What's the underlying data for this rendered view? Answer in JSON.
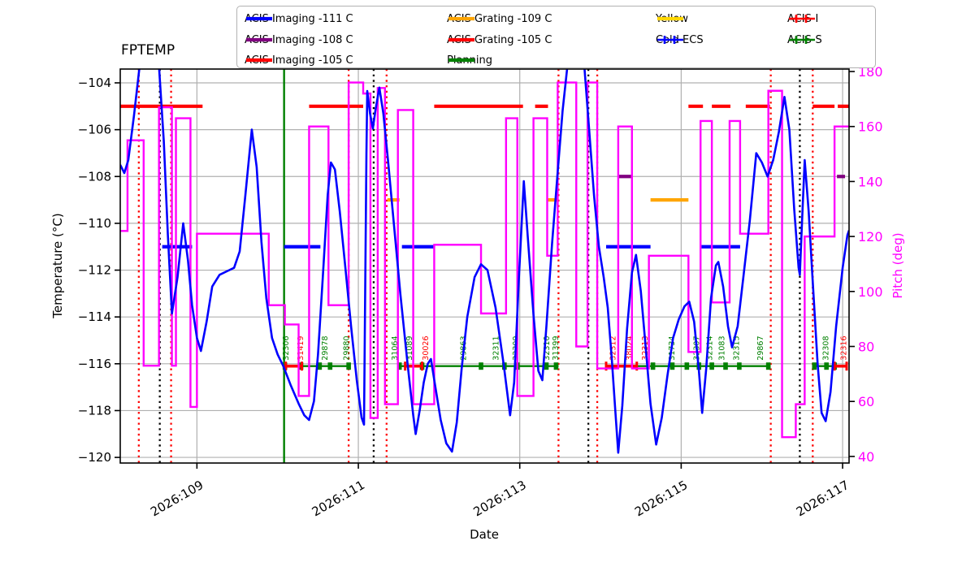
{
  "title": "FPTEMP",
  "axes": {
    "y_left": "Temperature (°C)",
    "y_right": "Pitch (deg)",
    "x": "Date"
  },
  "legend": {
    "items": [
      {
        "label": "ACIS Imaging -111 C",
        "color": "#0000ff",
        "style": "line",
        "col": 0,
        "row": 0
      },
      {
        "label": "ACIS Imaging -108 C",
        "color": "#800080",
        "style": "line",
        "col": 0,
        "row": 1
      },
      {
        "label": "ACIS Imaging -105 C",
        "color": "#ff0000",
        "style": "line",
        "col": 0,
        "row": 2
      },
      {
        "label": "ACIS Grating -109 C",
        "color": "#ffa500",
        "style": "line",
        "col": 1,
        "row": 0
      },
      {
        "label": "ACIS Grating -105 C",
        "color": "#ff0000",
        "style": "line",
        "col": 1,
        "row": 1
      },
      {
        "label": "Planning",
        "color": "#008000",
        "style": "line",
        "col": 1,
        "row": 2
      },
      {
        "label": "Yellow",
        "color": "#ffd700",
        "style": "line",
        "col": 2,
        "row": 0
      },
      {
        "label": "Cold ECS",
        "color": "#0000ff",
        "style": "plusline",
        "col": 2,
        "row": 1
      },
      {
        "label": "ACIS-I",
        "color": "#ff0000",
        "style": "plusline",
        "col": 3,
        "row": 0
      },
      {
        "label": "ACIS-S",
        "color": "#008000",
        "style": "plusline",
        "col": 3,
        "row": 1
      }
    ]
  },
  "chart_data": {
    "type": "line",
    "title": "FPTEMP",
    "xlabel": "Date",
    "ylabel_left": "Temperature (°C)",
    "ylabel_right": "Pitch (deg)",
    "grid": true,
    "x_range": [
      108.05,
      117.08
    ],
    "x_ticks": [
      {
        "day": 109,
        "label": "2026:109"
      },
      {
        "day": 111,
        "label": "2026:111"
      },
      {
        "day": 113,
        "label": "2026:113"
      },
      {
        "day": 115,
        "label": "2026:115"
      },
      {
        "day": 117,
        "label": "2026:117"
      }
    ],
    "y_left_range": [
      -120.24,
      -103.41
    ],
    "y_left_ticks": [
      -104,
      -106,
      -108,
      -110,
      -112,
      -114,
      -116,
      -118,
      -120
    ],
    "y_right_range": [
      37.6,
      180.9
    ],
    "y_right_ticks": [
      180,
      160,
      140,
      120,
      100,
      80,
      60,
      40
    ],
    "fptemp_series": {
      "name": "FPTEMP",
      "color": "#0000ff",
      "units": "C",
      "points": [
        [
          108.05,
          -107.5
        ],
        [
          108.1,
          -107.85
        ],
        [
          108.15,
          -107.3
        ],
        [
          108.22,
          -105.4
        ],
        [
          108.29,
          -103.3
        ],
        [
          108.53,
          -103.3
        ],
        [
          108.59,
          -106.5
        ],
        [
          108.64,
          -110.5
        ],
        [
          108.69,
          -113.85
        ],
        [
          108.76,
          -112.3
        ],
        [
          108.83,
          -110.0
        ],
        [
          108.89,
          -111.6
        ],
        [
          108.94,
          -113.5
        ],
        [
          109.0,
          -114.9
        ],
        [
          109.05,
          -115.45
        ],
        [
          109.12,
          -114.2
        ],
        [
          109.19,
          -112.7
        ],
        [
          109.28,
          -112.2
        ],
        [
          109.37,
          -112.05
        ],
        [
          109.46,
          -111.9
        ],
        [
          109.53,
          -111.2
        ],
        [
          109.6,
          -108.8
        ],
        [
          109.68,
          -106.0
        ],
        [
          109.74,
          -107.6
        ],
        [
          109.8,
          -110.8
        ],
        [
          109.86,
          -113.2
        ],
        [
          109.93,
          -114.9
        ],
        [
          110.0,
          -115.6
        ],
        [
          110.07,
          -116.1
        ],
        [
          110.16,
          -116.9
        ],
        [
          110.26,
          -117.7
        ],
        [
          110.33,
          -118.2
        ],
        [
          110.39,
          -118.4
        ],
        [
          110.45,
          -117.6
        ],
        [
          110.5,
          -115.6
        ],
        [
          110.56,
          -112.3
        ],
        [
          110.62,
          -108.8
        ],
        [
          110.66,
          -107.4
        ],
        [
          110.71,
          -107.7
        ],
        [
          110.77,
          -109.5
        ],
        [
          110.84,
          -111.9
        ],
        [
          110.91,
          -114.4
        ],
        [
          110.98,
          -116.7
        ],
        [
          111.04,
          -118.3
        ],
        [
          111.07,
          -118.6
        ],
        [
          111.1,
          -107.0
        ],
        [
          111.11,
          -104.35
        ],
        [
          111.145,
          -105.3
        ],
        [
          111.18,
          -105.95
        ],
        [
          111.215,
          -105.1
        ],
        [
          111.26,
          -104.2
        ],
        [
          111.31,
          -105.3
        ],
        [
          111.37,
          -107.4
        ],
        [
          111.44,
          -110.0
        ],
        [
          111.52,
          -113.0
        ],
        [
          111.61,
          -116.0
        ],
        [
          111.68,
          -118.2
        ],
        [
          111.71,
          -119.0
        ],
        [
          111.76,
          -118.0
        ],
        [
          111.81,
          -116.8
        ],
        [
          111.86,
          -116.0
        ],
        [
          111.9,
          -115.8
        ],
        [
          111.95,
          -116.9
        ],
        [
          112.02,
          -118.4
        ],
        [
          112.09,
          -119.4
        ],
        [
          112.16,
          -119.75
        ],
        [
          112.22,
          -118.5
        ],
        [
          112.28,
          -116.2
        ],
        [
          112.35,
          -114.0
        ],
        [
          112.44,
          -112.3
        ],
        [
          112.52,
          -111.75
        ],
        [
          112.6,
          -112.0
        ],
        [
          112.7,
          -113.6
        ],
        [
          112.8,
          -116.0
        ],
        [
          112.88,
          -118.2
        ],
        [
          112.93,
          -116.8
        ],
        [
          112.99,
          -112.3
        ],
        [
          113.05,
          -108.2
        ],
        [
          113.1,
          -110.6
        ],
        [
          113.17,
          -113.9
        ],
        [
          113.23,
          -116.3
        ],
        [
          113.28,
          -116.7
        ],
        [
          113.33,
          -114.4
        ],
        [
          113.4,
          -110.9
        ],
        [
          113.47,
          -107.8
        ],
        [
          113.53,
          -105.2
        ],
        [
          113.59,
          -103.3
        ],
        [
          113.8,
          -103.3
        ],
        [
          113.86,
          -106.0
        ],
        [
          113.92,
          -108.8
        ],
        [
          113.98,
          -111.0
        ],
        [
          114.04,
          -112.3
        ],
        [
          114.09,
          -113.6
        ],
        [
          114.14,
          -115.8
        ],
        [
          114.18,
          -117.8
        ],
        [
          114.22,
          -119.8
        ],
        [
          114.27,
          -117.8
        ],
        [
          114.33,
          -114.5
        ],
        [
          114.39,
          -112.1
        ],
        [
          114.44,
          -111.35
        ],
        [
          114.5,
          -112.9
        ],
        [
          114.56,
          -115.3
        ],
        [
          114.62,
          -117.7
        ],
        [
          114.69,
          -119.45
        ],
        [
          114.76,
          -118.3
        ],
        [
          114.83,
          -116.5
        ],
        [
          114.9,
          -114.9
        ],
        [
          114.97,
          -114.1
        ],
        [
          115.04,
          -113.55
        ],
        [
          115.1,
          -113.35
        ],
        [
          115.16,
          -114.2
        ],
        [
          115.22,
          -116.3
        ],
        [
          115.26,
          -118.1
        ],
        [
          115.31,
          -116.2
        ],
        [
          115.37,
          -113.2
        ],
        [
          115.43,
          -111.8
        ],
        [
          115.46,
          -111.65
        ],
        [
          115.52,
          -112.7
        ],
        [
          115.58,
          -114.4
        ],
        [
          115.63,
          -115.3
        ],
        [
          115.7,
          -114.4
        ],
        [
          115.77,
          -112.3
        ],
        [
          115.85,
          -109.9
        ],
        [
          115.93,
          -107.0
        ],
        [
          116.0,
          -107.4
        ],
        [
          116.07,
          -108.0
        ],
        [
          116.14,
          -107.3
        ],
        [
          116.21,
          -106.1
        ],
        [
          116.28,
          -104.6
        ],
        [
          116.34,
          -106.0
        ],
        [
          116.4,
          -109.4
        ],
        [
          116.455,
          -111.9
        ],
        [
          116.47,
          -112.2
        ],
        [
          116.5,
          -109.7
        ],
        [
          116.53,
          -107.3
        ],
        [
          116.58,
          -109.5
        ],
        [
          116.63,
          -112.5
        ],
        [
          116.69,
          -116.0
        ],
        [
          116.74,
          -118.1
        ],
        [
          116.79,
          -118.45
        ],
        [
          116.85,
          -117.2
        ],
        [
          116.92,
          -114.4
        ],
        [
          117.0,
          -111.9
        ],
        [
          117.06,
          -110.5
        ],
        [
          117.08,
          -110.3
        ]
      ]
    },
    "pitch_series": {
      "name": "Pitch",
      "color": "#ff00ff",
      "units": "deg",
      "style": "steps",
      "steps": [
        [
          108.05,
          122
        ],
        [
          108.14,
          155
        ],
        [
          108.34,
          73
        ],
        [
          108.53,
          167
        ],
        [
          108.69,
          73
        ],
        [
          108.74,
          163
        ],
        [
          108.92,
          58
        ],
        [
          109.0,
          121
        ],
        [
          109.89,
          95
        ],
        [
          110.09,
          88
        ],
        [
          110.26,
          62
        ],
        [
          110.39,
          160
        ],
        [
          110.63,
          95
        ],
        [
          110.88,
          176
        ],
        [
          111.06,
          172
        ],
        [
          111.15,
          54
        ],
        [
          111.24,
          174
        ],
        [
          111.33,
          59
        ],
        [
          111.49,
          166
        ],
        [
          111.68,
          59
        ],
        [
          111.94,
          117
        ],
        [
          112.52,
          92
        ],
        [
          112.83,
          163
        ],
        [
          112.97,
          62
        ],
        [
          113.17,
          163
        ],
        [
          113.34,
          113
        ],
        [
          113.47,
          176
        ],
        [
          113.7,
          80
        ],
        [
          113.84,
          176
        ],
        [
          113.96,
          72
        ],
        [
          114.22,
          160
        ],
        [
          114.39,
          72
        ],
        [
          114.6,
          113
        ],
        [
          115.09,
          78
        ],
        [
          115.24,
          162
        ],
        [
          115.38,
          96
        ],
        [
          115.6,
          162
        ],
        [
          115.73,
          121
        ],
        [
          116.08,
          173
        ],
        [
          116.25,
          47
        ],
        [
          116.42,
          59
        ],
        [
          116.53,
          120
        ],
        [
          116.9,
          160
        ]
      ],
      "end_day": 117.08
    },
    "limit_segments": [
      {
        "name": "ACIS Imaging -111 C",
        "color": "#0000ff",
        "temp": -111,
        "segments": [
          [
            108.57,
            108.94
          ],
          [
            110.08,
            110.53
          ],
          [
            111.54,
            111.94
          ],
          [
            114.07,
            114.62
          ],
          [
            115.25,
            115.73
          ]
        ]
      },
      {
        "name": "ACIS Imaging -108 C",
        "color": "#800080",
        "temp": -108,
        "segments": [
          [
            114.22,
            114.38
          ],
          [
            116.93,
            117.03
          ]
        ]
      },
      {
        "name": "ACIS Imaging -105 C",
        "color": "#ff0000",
        "temp": -105,
        "segments": [
          [
            108.05,
            109.07
          ],
          [
            110.39,
            111.06
          ],
          [
            111.94,
            113.04
          ],
          [
            113.19,
            113.35
          ],
          [
            115.09,
            115.27
          ],
          [
            115.38,
            115.61
          ],
          [
            115.8,
            116.1
          ],
          [
            116.63,
            116.9
          ],
          [
            116.94,
            117.08
          ]
        ]
      },
      {
        "name": "ACIS Grating -109 C",
        "color": "#ffa500",
        "temp": -109,
        "segments": [
          [
            111.36,
            111.51
          ],
          [
            113.35,
            113.47
          ],
          [
            114.62,
            115.09
          ]
        ]
      }
    ],
    "planning_vline": {
      "day": 110.08,
      "color": "#008000"
    },
    "vlines_dotted": [
      {
        "day": 108.28,
        "color": "#ff0000"
      },
      {
        "day": 108.54,
        "color": "#000000"
      },
      {
        "day": 108.68,
        "color": "#ff0000"
      },
      {
        "day": 110.88,
        "color": "#ff0000"
      },
      {
        "day": 111.19,
        "color": "#000000"
      },
      {
        "day": 111.35,
        "color": "#ff0000"
      },
      {
        "day": 113.48,
        "color": "#ff0000"
      },
      {
        "day": 113.85,
        "color": "#000000"
      },
      {
        "day": 113.96,
        "color": "#ff0000"
      },
      {
        "day": 116.11,
        "color": "#ff0000"
      },
      {
        "day": 116.47,
        "color": "#000000"
      },
      {
        "day": 116.63,
        "color": "#ff0000"
      }
    ],
    "ecs_line": {
      "temp": -116.1,
      "color": "#008000",
      "segments": [
        [
          110.09,
          110.88
        ],
        [
          111.51,
          113.48
        ],
        [
          114.07,
          116.1
        ],
        [
          116.65,
          117.05
        ]
      ],
      "marker_days": [
        110.09,
        110.29,
        110.52,
        110.65,
        110.88,
        111.51,
        111.79,
        112.52,
        112.81,
        112.97,
        113.33,
        113.45,
        114.65,
        114.89,
        115.07,
        115.22,
        115.38,
        115.55,
        115.72,
        116.08,
        116.65,
        116.8,
        116.9
      ],
      "acis_i_segments": [
        [
          110.1,
          110.3
        ],
        [
          111.58,
          111.79
        ],
        [
          114.07,
          114.45
        ],
        [
          116.9,
          117.05
        ]
      ],
      "acis_i_color": "#ff0000"
    },
    "obsid_labels": [
      {
        "day": 110.1,
        "id": "32306",
        "color": "#008000"
      },
      {
        "day": 110.28,
        "id": "31419",
        "color": "#ff0000"
      },
      {
        "day": 110.58,
        "id": "29878",
        "color": "#008000"
      },
      {
        "day": 110.85,
        "id": "29880",
        "color": "#008000"
      },
      {
        "day": 111.45,
        "id": "31064",
        "color": "#008000"
      },
      {
        "day": 111.63,
        "id": "31089",
        "color": "#008000"
      },
      {
        "day": 111.83,
        "id": "30026",
        "color": "#ff0000"
      },
      {
        "day": 112.3,
        "id": "29863",
        "color": "#008000"
      },
      {
        "day": 112.7,
        "id": "32311",
        "color": "#008000"
      },
      {
        "day": 112.95,
        "id": "32309",
        "color": "#008000"
      },
      {
        "day": 113.33,
        "id": "32310",
        "color": "#008000"
      },
      {
        "day": 113.44,
        "id": "31399",
        "color": "#008000"
      },
      {
        "day": 114.15,
        "id": "32312",
        "color": "#ff0000"
      },
      {
        "day": 114.35,
        "id": "38024",
        "color": "#ff0000"
      },
      {
        "day": 114.55,
        "id": "32313",
        "color": "#ff0000"
      },
      {
        "day": 114.88,
        "id": "31734",
        "color": "#008000"
      },
      {
        "day": 115.19,
        "id": "32307",
        "color": "#008000"
      },
      {
        "day": 115.35,
        "id": "32314",
        "color": "#008000"
      },
      {
        "day": 115.5,
        "id": "31083",
        "color": "#008000"
      },
      {
        "day": 115.68,
        "id": "32315",
        "color": "#008000"
      },
      {
        "day": 115.98,
        "id": "29867",
        "color": "#008000"
      },
      {
        "day": 116.79,
        "id": "32308",
        "color": "#008000"
      },
      {
        "day": 117.01,
        "id": "32316",
        "color": "#ff0000"
      }
    ]
  }
}
